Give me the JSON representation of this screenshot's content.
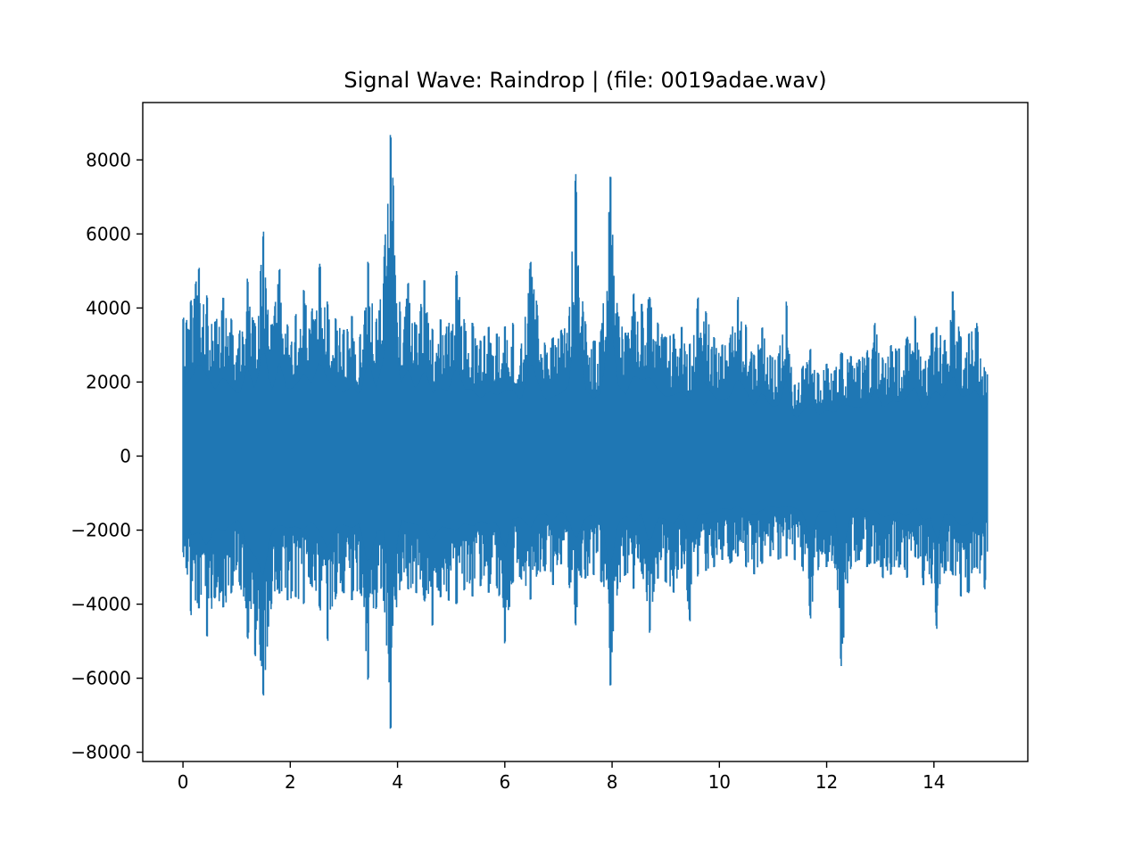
{
  "chart_data": {
    "type": "line",
    "title": "Signal Wave: Raindrop | (file: 0019adae.wav)",
    "xlabel": "",
    "ylabel": "",
    "xlim": [
      -0.75,
      15.75
    ],
    "ylim": [
      -8250,
      9550
    ],
    "x_ticks": [
      0,
      2,
      4,
      6,
      8,
      10,
      12,
      14
    ],
    "x_tick_labels": [
      "0",
      "2",
      "4",
      "6",
      "8",
      "10",
      "12",
      "14"
    ],
    "y_ticks": [
      -8000,
      -6000,
      -4000,
      -2000,
      0,
      2000,
      4000,
      6000,
      8000
    ],
    "y_tick_labels": [
      "−8000",
      "−6000",
      "−4000",
      "−2000",
      "0",
      "2000",
      "4000",
      "6000",
      "8000"
    ],
    "grid": false,
    "legend": "none",
    "series": [
      {
        "color": "#1f77b4",
        "x": [
          0,
          0.15,
          0.3,
          0.45,
          0.6,
          0.75,
          0.9,
          1.05,
          1.2,
          1.35,
          1.5,
          1.65,
          1.8,
          1.95,
          2.1,
          2.25,
          2.4,
          2.55,
          2.7,
          2.85,
          3.0,
          3.15,
          3.3,
          3.45,
          3.6,
          3.75,
          3.87,
          4.05,
          4.2,
          4.35,
          4.5,
          4.65,
          4.8,
          4.95,
          5.1,
          5.25,
          5.4,
          5.55,
          5.7,
          5.85,
          6.0,
          6.15,
          6.3,
          6.48,
          6.6,
          6.75,
          6.9,
          7.05,
          7.2,
          7.32,
          7.5,
          7.65,
          7.8,
          7.97,
          8.1,
          8.25,
          8.4,
          8.55,
          8.7,
          8.85,
          9.0,
          9.15,
          9.3,
          9.45,
          9.6,
          9.75,
          9.9,
          10.05,
          10.2,
          10.35,
          10.5,
          10.65,
          10.8,
          10.95,
          11.1,
          11.25,
          11.4,
          11.55,
          11.7,
          11.85,
          12.0,
          12.15,
          12.27,
          12.45,
          12.6,
          12.75,
          12.9,
          13.05,
          13.2,
          13.35,
          13.5,
          13.65,
          13.8,
          13.95,
          14.05,
          14.2,
          14.35,
          14.5,
          14.65,
          14.8,
          14.95,
          15.0
        ],
        "max": [
          3700,
          4200,
          5100,
          4300,
          3600,
          4300,
          3700,
          3300,
          4800,
          3500,
          6100,
          3400,
          5100,
          3500,
          3800,
          4500,
          3900,
          5200,
          4100,
          3700,
          3400,
          3800,
          3200,
          5300,
          3600,
          5400,
          8800,
          3900,
          4700,
          3500,
          4800,
          3400,
          3700,
          3500,
          5000,
          3600,
          3600,
          3100,
          3500,
          3300,
          3500,
          3600,
          2900,
          5300,
          4100,
          3000,
          3200,
          3400,
          3800,
          7700,
          3600,
          3100,
          3400,
          7700,
          3900,
          3300,
          4400,
          4100,
          4300,
          3600,
          3200,
          3300,
          3500,
          3000,
          4300,
          3900,
          3200,
          3000,
          3200,
          4300,
          3500,
          2700,
          3500,
          2700,
          2700,
          4200,
          1900,
          2400,
          2900,
          2200,
          2500,
          2300,
          2800,
          2700,
          2600,
          2800,
          3600,
          2600,
          3000,
          2900,
          3200,
          3800,
          2300,
          3300,
          3500,
          3100,
          4500,
          3200,
          3300,
          3600,
          2300,
          2200
        ],
        "min": [
          -2600,
          -4300,
          -4100,
          -4900,
          -3800,
          -4100,
          -3700,
          -3400,
          -4900,
          -5400,
          -6500,
          -4000,
          -3700,
          -3900,
          -3800,
          -4000,
          -3500,
          -4100,
          -5000,
          -3800,
          -3700,
          -3900,
          -3600,
          -6100,
          -4100,
          -3900,
          -7500,
          -3400,
          -3600,
          -3700,
          -3900,
          -4600,
          -3800,
          -3900,
          -4000,
          -3600,
          -3800,
          -3500,
          -3700,
          -3500,
          -5100,
          -3400,
          -3300,
          -3900,
          -3200,
          -3100,
          -3500,
          -2900,
          -3500,
          -4600,
          -3300,
          -3200,
          -3400,
          -6300,
          -3600,
          -3200,
          -3600,
          -3100,
          -4800,
          -3300,
          -3400,
          -3700,
          -3000,
          -4500,
          -3200,
          -3100,
          -3000,
          -2800,
          -2900,
          -2700,
          -3000,
          -3200,
          -2900,
          -2700,
          -2800,
          -2700,
          -2800,
          -3000,
          -4400,
          -3000,
          -3000,
          -2900,
          -5700,
          -3000,
          -2800,
          -3000,
          -2900,
          -3300,
          -3200,
          -3000,
          -3300,
          -2700,
          -3500,
          -3300,
          -4700,
          -3100,
          -3200,
          -3800,
          -3700,
          -3000,
          -3600,
          -2500
        ]
      }
    ]
  }
}
